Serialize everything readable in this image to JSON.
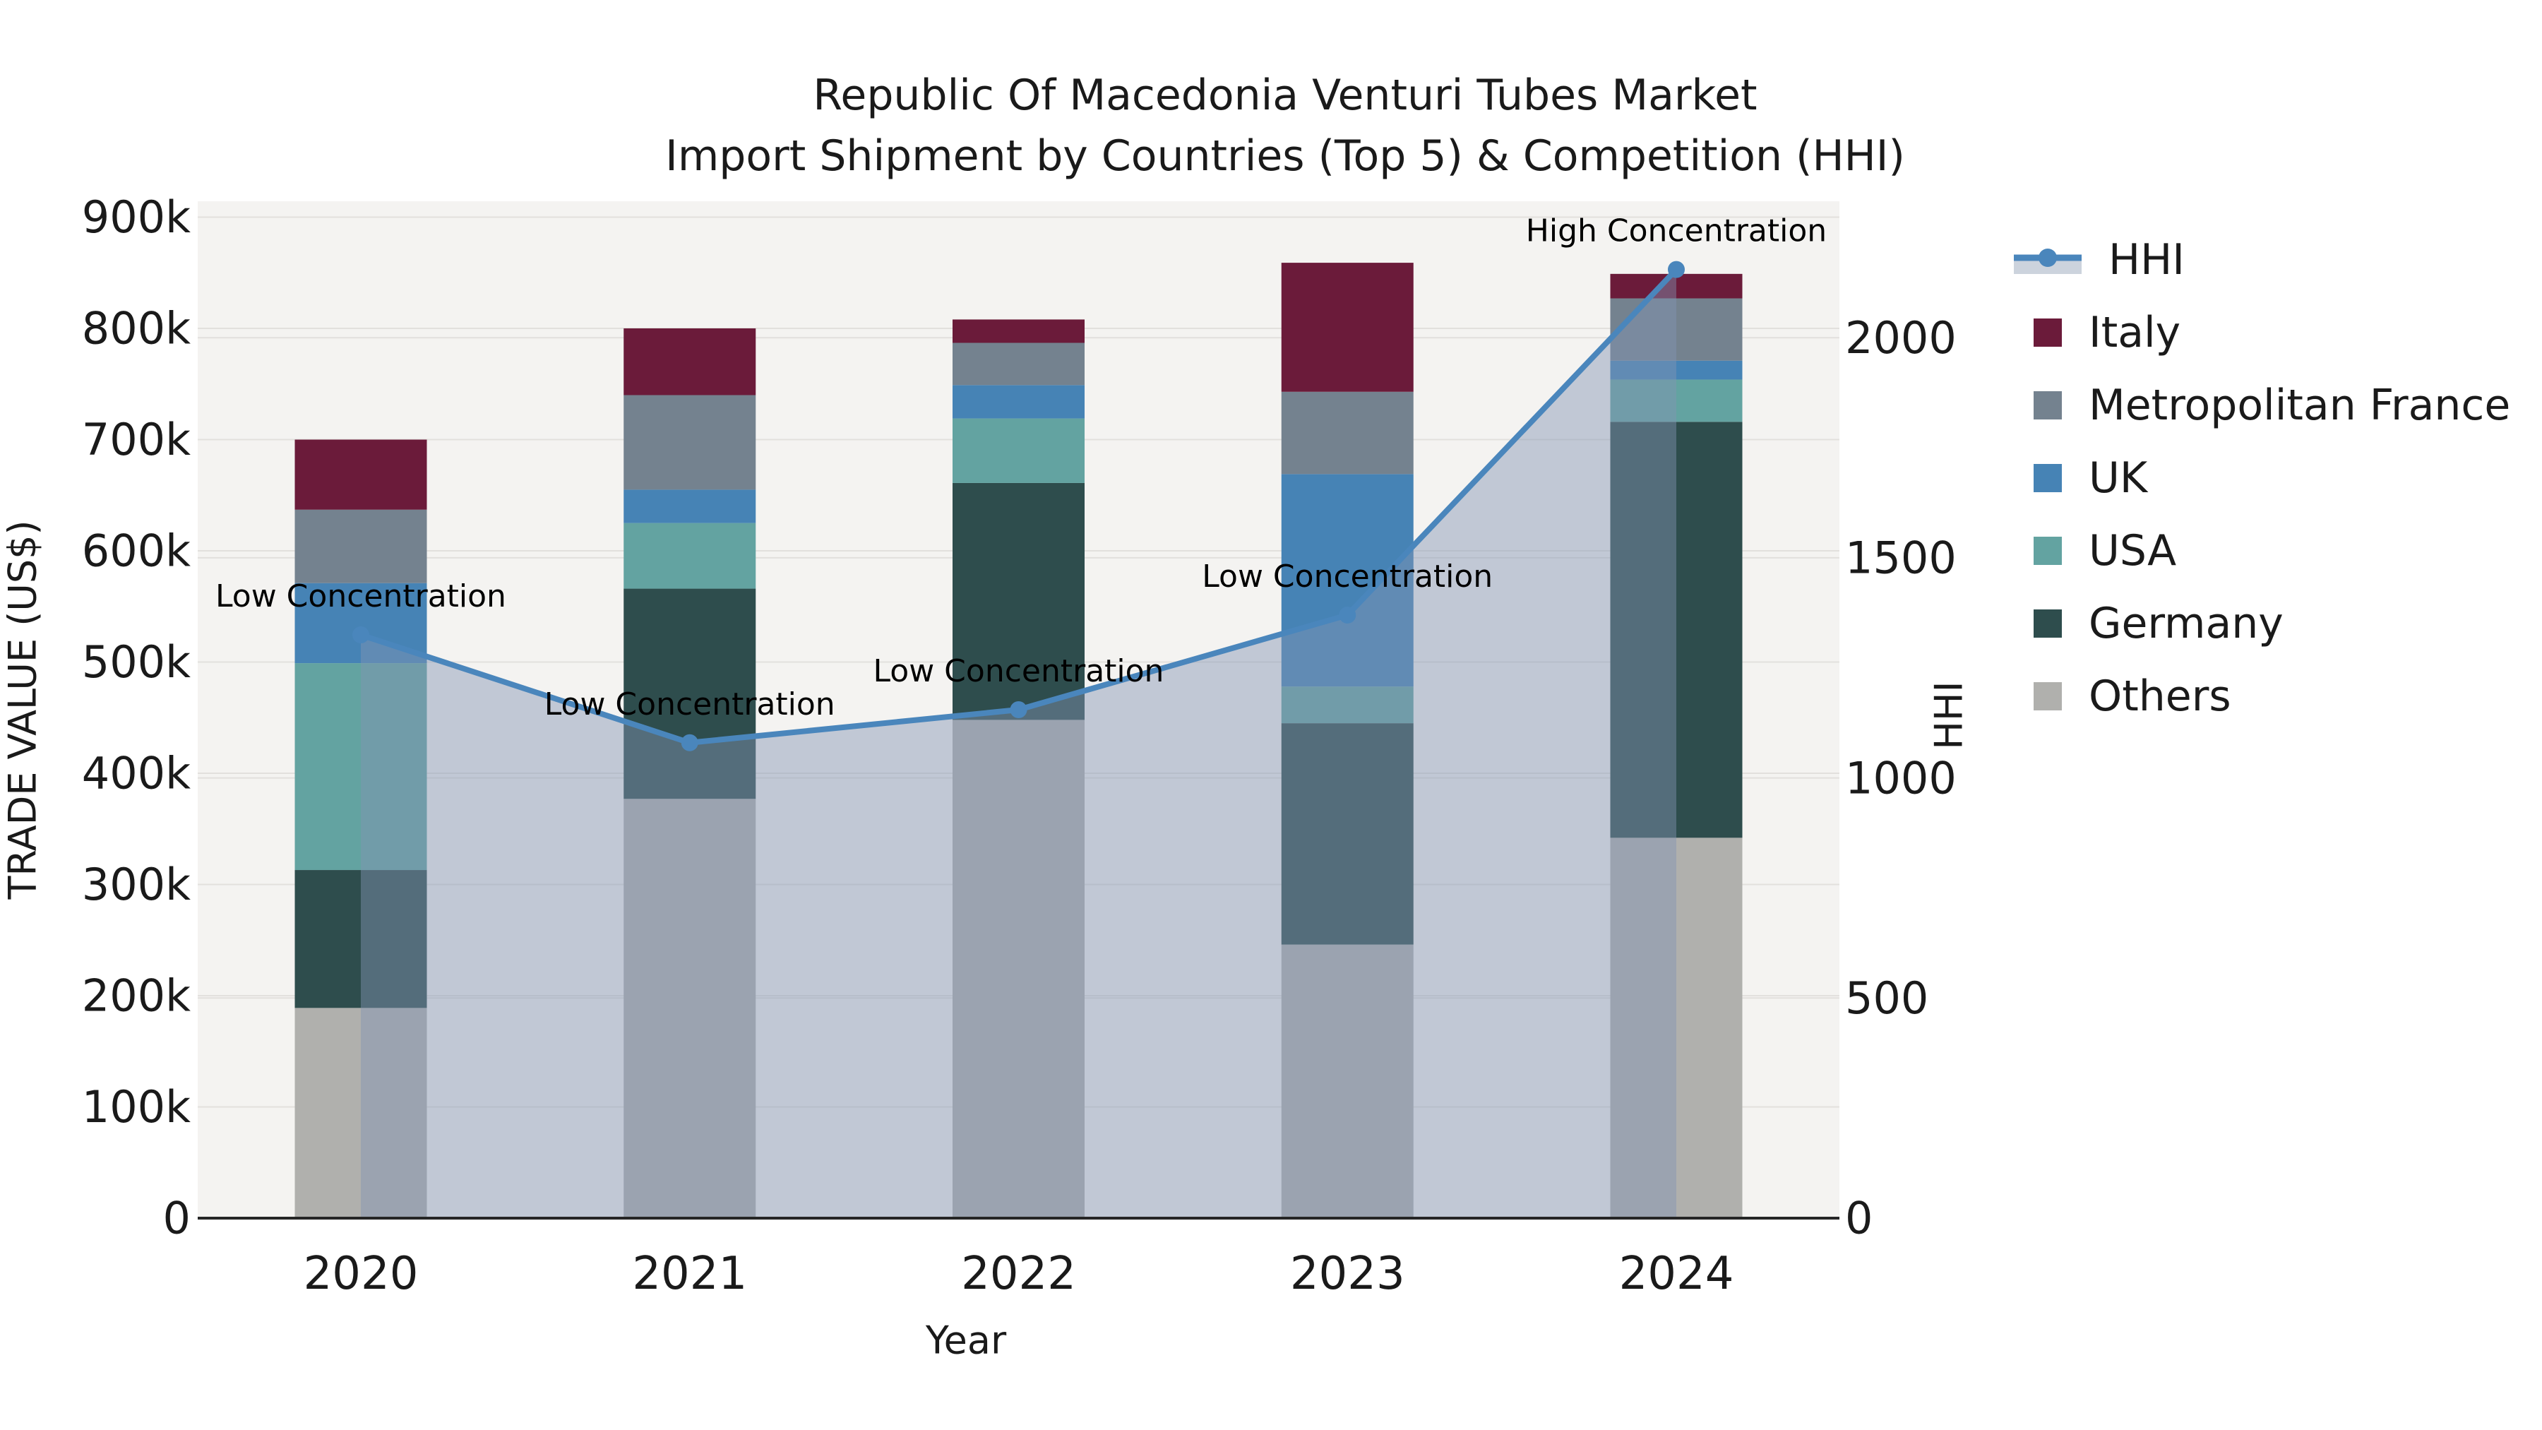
{
  "figure": {
    "title_line1": "Republic Of Macedonia Venturi Tubes Market",
    "title_line2": "Import Shipment by Countries (Top 5) & Competition (HHI)"
  },
  "axes": {
    "x_label": "Year",
    "y_left_label": "TRADE VALUE (US$)",
    "y_right_label": "HHI",
    "x_ticks": [
      "2020",
      "2021",
      "2022",
      "2023",
      "2024"
    ],
    "y_left_ticks": [
      {
        "value": 0,
        "label": "0"
      },
      {
        "value": 100000,
        "label": "100k"
      },
      {
        "value": 200000,
        "label": "200k"
      },
      {
        "value": 300000,
        "label": "300k"
      },
      {
        "value": 400000,
        "label": "400k"
      },
      {
        "value": 500000,
        "label": "500k"
      },
      {
        "value": 600000,
        "label": "600k"
      },
      {
        "value": 700000,
        "label": "700k"
      },
      {
        "value": 800000,
        "label": "800k"
      },
      {
        "value": 900000,
        "label": "900k"
      }
    ],
    "y_right_ticks": [
      {
        "value": 0,
        "label": "0"
      },
      {
        "value": 500,
        "label": "500"
      },
      {
        "value": 1000,
        "label": "1000"
      },
      {
        "value": 1500,
        "label": "1500"
      },
      {
        "value": 2000,
        "label": "2000"
      }
    ]
  },
  "legend": {
    "items": [
      {
        "label": "HHI",
        "type": "line",
        "color": "#4a86bc",
        "band_color": "#ccd3dd"
      },
      {
        "label": "Italy",
        "type": "swatch",
        "color": "#6b1b3a"
      },
      {
        "label": "Metropolitan France",
        "type": "swatch",
        "color": "#74828f"
      },
      {
        "label": "UK",
        "type": "swatch",
        "color": "#4683b5"
      },
      {
        "label": "USA",
        "type": "swatch",
        "color": "#63a3a1"
      },
      {
        "label": "Germany",
        "type": "swatch",
        "color": "#2e4d4d"
      },
      {
        "label": "Others",
        "type": "swatch",
        "color": "#b0b0ad"
      }
    ]
  },
  "chart_data": {
    "type": "bar",
    "subtype": "stacked-bars-with-line-overlay",
    "title": "Republic Of Macedonia Venturi Tubes Market",
    "subtitle": "Import Shipment by Countries (Top 5) & Competition (HHI)",
    "xlabel": "Year",
    "ylabel_left": "TRADE VALUE (US$)",
    "ylabel_right": "HHI",
    "categories": [
      "2020",
      "2021",
      "2022",
      "2023",
      "2024"
    ],
    "stack_order_bottom_to_top": [
      "Others",
      "Germany",
      "USA",
      "UK",
      "Metropolitan France",
      "Italy"
    ],
    "series": [
      {
        "name": "Others",
        "color": "#b0b0ad",
        "values": [
          189000,
          377000,
          448000,
          246000,
          342000
        ]
      },
      {
        "name": "Germany",
        "color": "#2e4d4d",
        "values": [
          124000,
          189000,
          213000,
          199000,
          374000
        ]
      },
      {
        "name": "USA",
        "color": "#63a3a1",
        "values": [
          186000,
          59000,
          58000,
          33000,
          38000
        ]
      },
      {
        "name": "UK",
        "color": "#4683b5",
        "values": [
          72000,
          30000,
          30000,
          191000,
          17000
        ]
      },
      {
        "name": "Metropolitan France",
        "color": "#74828f",
        "values": [
          66000,
          85000,
          38000,
          74000,
          56000
        ]
      },
      {
        "name": "Italy",
        "color": "#6b1b3a",
        "values": [
          63000,
          60000,
          21000,
          116000,
          22000
        ]
      }
    ],
    "bar_totals": [
      700000,
      800000,
      808000,
      859000,
      849000
    ],
    "line_series": {
      "name": "HHI",
      "color": "#4a86bc",
      "area_fill": "rgba(130,148,180,0.45)",
      "values": [
        1325,
        1080,
        1155,
        1370,
        2155
      ]
    },
    "annotations": [
      {
        "x": "2020",
        "text": "Low Concentration"
      },
      {
        "x": "2021",
        "text": "Low Concentration"
      },
      {
        "x": "2022",
        "text": "Low Concentration"
      },
      {
        "x": "2023",
        "text": "Low Concentration"
      },
      {
        "x": "2024",
        "text": "High Concentration"
      }
    ],
    "ylim_left": [
      0,
      914300
    ],
    "ylim_right": [
      0,
      2310
    ],
    "grid": true,
    "legend_position": "right",
    "plot_background": "#f4f3f1",
    "gridline_color": "#e2e0dd",
    "axis_line_color": "#262626"
  }
}
